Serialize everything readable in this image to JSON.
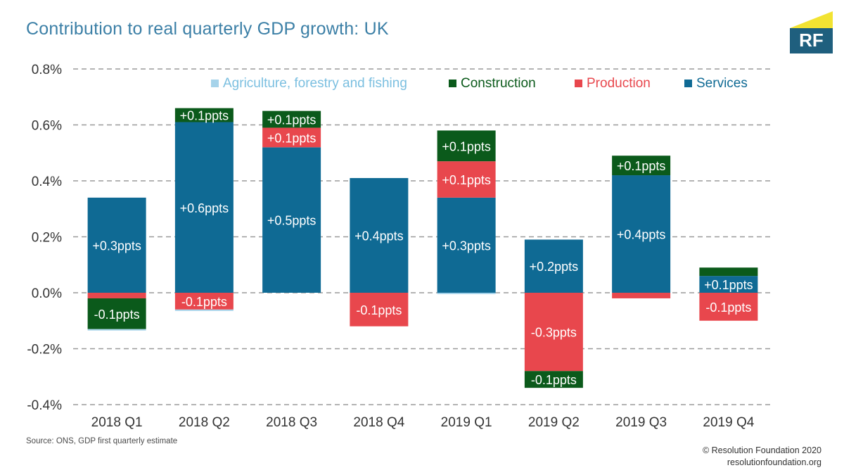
{
  "title": "Contribution to real quarterly GDP growth: UK",
  "logo_text": "RF",
  "source": "Source: ONS, GDP first quarterly estimate",
  "credit": [
    "© Resolution Foundation 2020",
    "resolutionfoundation.org"
  ],
  "colors": {
    "Agriculture, forestry and fishing": "#a6d3ea",
    "Construction": "#0b5a1b",
    "Production": "#e8474d",
    "Services": "#0f6a94",
    "legend_text": {
      "Agriculture, forestry and fishing": "#7bbfe0",
      "Construction": "#0b5a1b",
      "Production": "#e8474d",
      "Services": "#0f6a94"
    }
  },
  "chart_data": {
    "type": "bar",
    "stacked": true,
    "title": "Contribution to real quarterly GDP growth: UK",
    "xlabel": "",
    "ylabel": "",
    "ylim": [
      -0.4,
      0.8
    ],
    "yticks": [
      "0.8%",
      "0.6%",
      "0.4%",
      "0.2%",
      "0.0%",
      "-0.2%",
      "-0.4%"
    ],
    "ytick_values": [
      0.8,
      0.6,
      0.4,
      0.2,
      0.0,
      -0.2,
      -0.4
    ],
    "grid": "horizontal-dashed",
    "legend_position": "top",
    "categories": [
      "2018 Q1",
      "2018 Q2",
      "2018 Q3",
      "2018 Q4",
      "2019 Q1",
      "2019 Q2",
      "2019 Q3",
      "2019 Q4"
    ],
    "series": [
      {
        "name": "Agriculture, forestry and fishing",
        "values": [
          -0.005,
          -0.005,
          0.0,
          0.0,
          -0.005,
          0.0,
          0.0,
          0.0
        ],
        "labels": [
          "",
          "",
          "",
          "",
          "",
          "",
          "",
          ""
        ]
      },
      {
        "name": "Construction",
        "values": [
          -0.11,
          0.05,
          0.06,
          0.0,
          0.11,
          -0.06,
          0.07,
          0.03
        ],
        "labels": [
          "-0.1ppts",
          "+0.1ppts",
          "+0.1ppts",
          "",
          "+0.1ppts",
          "-0.1ppts",
          "+0.1ppts",
          ""
        ]
      },
      {
        "name": "Production",
        "values": [
          -0.02,
          -0.06,
          0.07,
          -0.12,
          0.13,
          -0.28,
          -0.02,
          -0.1
        ],
        "labels": [
          "",
          "-0.1ppts",
          "+0.1ppts",
          "-0.1ppts",
          "+0.1ppts",
          "-0.3ppts",
          "",
          "-0.1ppts"
        ]
      },
      {
        "name": "Services",
        "values": [
          0.34,
          0.61,
          0.52,
          0.41,
          0.34,
          0.19,
          0.42,
          0.06
        ],
        "labels": [
          "+0.3ppts",
          "+0.6ppts",
          "+0.5ppts",
          "+0.4ppts",
          "+0.3ppts",
          "+0.2ppts",
          "+0.4ppts",
          "+0.1ppts"
        ]
      }
    ]
  }
}
